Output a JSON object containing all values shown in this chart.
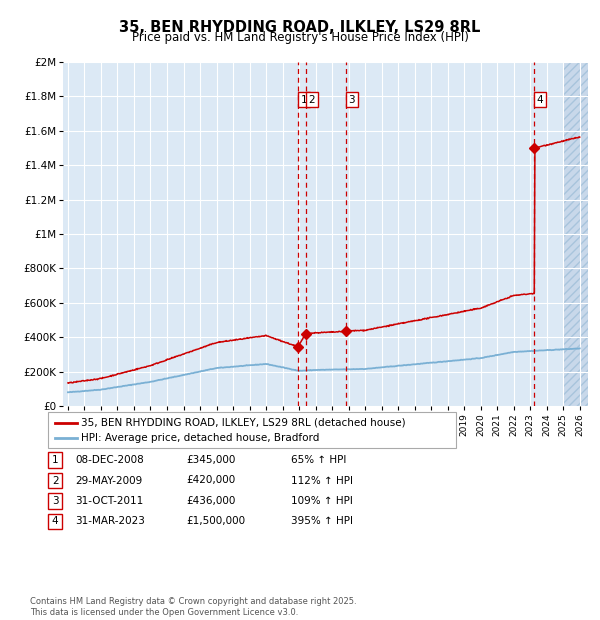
{
  "title1": "35, BEN RHYDDING ROAD, ILKLEY, LS29 8RL",
  "title2": "Price paid vs. HM Land Registry's House Price Index (HPI)",
  "bg_color": "#dce9f5",
  "grid_color": "#ffffff",
  "ylim": [
    0,
    2000000
  ],
  "yticks": [
    0,
    200000,
    400000,
    600000,
    800000,
    1000000,
    1200000,
    1400000,
    1600000,
    1800000,
    2000000
  ],
  "ytick_labels": [
    "£0",
    "£200K",
    "£400K",
    "£600K",
    "£800K",
    "£1M",
    "£1.2M",
    "£1.4M",
    "£1.6M",
    "£1.8M",
    "£2M"
  ],
  "xlim_start": 1994.7,
  "xlim_end": 2026.5,
  "sale_dates": [
    2008.93,
    2009.41,
    2011.83,
    2023.25
  ],
  "sale_prices": [
    345000,
    420000,
    436000,
    1500000
  ],
  "sale_labels": [
    "1",
    "2",
    "3",
    "4"
  ],
  "legend_line1": "35, BEN RHYDDING ROAD, ILKLEY, LS29 8RL (detached house)",
  "legend_line2": "HPI: Average price, detached house, Bradford",
  "table_rows": [
    [
      "1",
      "08-DEC-2008",
      "£345,000",
      "65% ↑ HPI"
    ],
    [
      "2",
      "29-MAY-2009",
      "£420,000",
      "112% ↑ HPI"
    ],
    [
      "3",
      "31-OCT-2011",
      "£436,000",
      "109% ↑ HPI"
    ],
    [
      "4",
      "31-MAR-2023",
      "£1,500,000",
      "395% ↑ HPI"
    ]
  ],
  "footnote": "Contains HM Land Registry data © Crown copyright and database right 2025.\nThis data is licensed under the Open Government Licence v3.0.",
  "red_line_color": "#cc0000",
  "blue_line_color": "#7ab0d4"
}
